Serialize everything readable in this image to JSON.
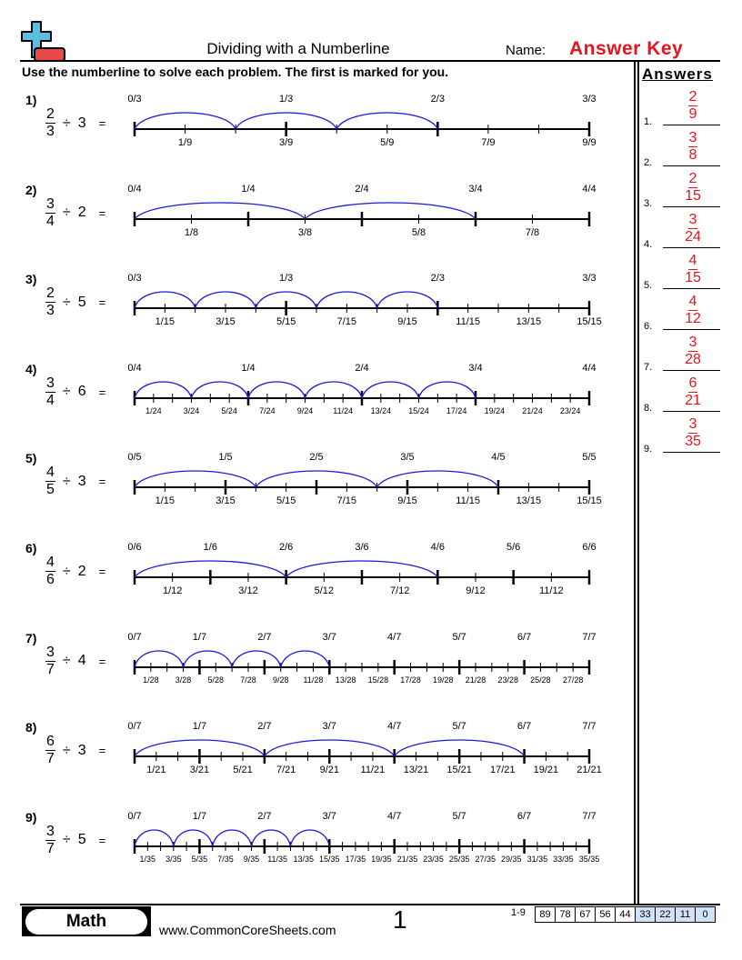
{
  "header": {
    "title": "Dividing with a Numberline",
    "name_label": "Name:",
    "name_value": "Answer Key",
    "instructions": "Use the numberline to solve each problem. The first is marked for you."
  },
  "colors": {
    "answer": "#e8141c",
    "arc": "#1a1adc",
    "logo_plus": "#5bbde0",
    "logo_minus": "#e84848",
    "score_highlight": "#cfe2f8"
  },
  "problems": [
    {
      "label": "1)",
      "num": "2",
      "den": "3",
      "divisor": "3",
      "parts": 9,
      "arcs": 3,
      "arc_end": "2/3",
      "top": [
        "0/3",
        "1/3",
        "2/3",
        "3/3"
      ],
      "bottom": [
        "1/9",
        "3/9",
        "5/9",
        "7/9",
        "9/9"
      ]
    },
    {
      "label": "2)",
      "num": "3",
      "den": "4",
      "divisor": "2",
      "parts": 8,
      "arcs": 2,
      "arc_end": "3/4",
      "top": [
        "0/4",
        "1/4",
        "2/4",
        "3/4",
        "4/4"
      ],
      "bottom": [
        "1/8",
        "3/8",
        "5/8",
        "7/8"
      ]
    },
    {
      "label": "3)",
      "num": "2",
      "den": "3",
      "divisor": "5",
      "parts": 15,
      "arcs": 5,
      "arc_end": "2/3",
      "top": [
        "0/3",
        "1/3",
        "2/3",
        "3/3"
      ],
      "bottom": [
        "1/15",
        "3/15",
        "5/15",
        "7/15",
        "9/15",
        "11/15",
        "13/15",
        "15/15"
      ]
    },
    {
      "label": "4)",
      "num": "3",
      "den": "4",
      "divisor": "6",
      "parts": 24,
      "arcs": 6,
      "arc_end": "3/4",
      "top": [
        "0/4",
        "1/4",
        "2/4",
        "3/4",
        "4/4"
      ],
      "bottom": [
        "1/24",
        "3/24",
        "5/24",
        "7/24",
        "9/24",
        "11/24",
        "13/24",
        "15/24",
        "17/24",
        "19/24",
        "21/24",
        "23/24"
      ]
    },
    {
      "label": "5)",
      "num": "4",
      "den": "5",
      "divisor": "3",
      "parts": 15,
      "arcs": 3,
      "arc_end": "4/5",
      "top": [
        "0/5",
        "1/5",
        "2/5",
        "3/5",
        "4/5",
        "5/5"
      ],
      "bottom": [
        "1/15",
        "3/15",
        "5/15",
        "7/15",
        "9/15",
        "11/15",
        "13/15",
        "15/15"
      ]
    },
    {
      "label": "6)",
      "num": "4",
      "den": "6",
      "divisor": "2",
      "parts": 12,
      "arcs": 2,
      "arc_end": "4/6",
      "top": [
        "0/6",
        "1/6",
        "2/6",
        "3/6",
        "4/6",
        "5/6",
        "6/6"
      ],
      "bottom": [
        "1/12",
        "3/12",
        "5/12",
        "7/12",
        "9/12",
        "11/12"
      ]
    },
    {
      "label": "7)",
      "num": "3",
      "den": "7",
      "divisor": "4",
      "parts": 28,
      "arcs": 4,
      "arc_end": "3/7",
      "top": [
        "0/7",
        "1/7",
        "2/7",
        "3/7",
        "4/7",
        "5/7",
        "6/7",
        "7/7"
      ],
      "bottom": [
        "1/28",
        "3/28",
        "5/28",
        "7/28",
        "9/28",
        "11/28",
        "13/28",
        "15/28",
        "17/28",
        "19/28",
        "21/28",
        "23/28",
        "25/28",
        "27/28"
      ]
    },
    {
      "label": "8)",
      "num": "6",
      "den": "7",
      "divisor": "3",
      "parts": 21,
      "arcs": 3,
      "arc_end": "6/7",
      "top": [
        "0/7",
        "1/7",
        "2/7",
        "3/7",
        "4/7",
        "5/7",
        "6/7",
        "7/7"
      ],
      "bottom": [
        "1/21",
        "3/21",
        "5/21",
        "7/21",
        "9/21",
        "11/21",
        "13/21",
        "15/21",
        "17/21",
        "19/21",
        "21/21"
      ]
    },
    {
      "label": "9)",
      "num": "3",
      "den": "7",
      "divisor": "5",
      "parts": 35,
      "arcs": 5,
      "arc_end": "3/7",
      "top": [
        "0/7",
        "1/7",
        "2/7",
        "3/7",
        "4/7",
        "5/7",
        "6/7",
        "7/7"
      ],
      "bottom": [
        "1/35",
        "3/35",
        "5/35",
        "7/35",
        "9/35",
        "11/35",
        "13/35",
        "15/35",
        "17/35",
        "19/35",
        "21/35",
        "23/35",
        "25/35",
        "27/35",
        "29/35",
        "31/35",
        "33/35",
        "35/35"
      ]
    }
  ],
  "answers": {
    "heading": "Answers",
    "items": [
      {
        "n": "1.",
        "num": "2",
        "den": "9"
      },
      {
        "n": "2.",
        "num": "3",
        "den": "8"
      },
      {
        "n": "3.",
        "num": "2",
        "den": "15"
      },
      {
        "n": "4.",
        "num": "3",
        "den": "24"
      },
      {
        "n": "5.",
        "num": "4",
        "den": "15"
      },
      {
        "n": "6.",
        "num": "4",
        "den": "12"
      },
      {
        "n": "7.",
        "num": "3",
        "den": "28"
      },
      {
        "n": "8.",
        "num": "6",
        "den": "21"
      },
      {
        "n": "9.",
        "num": "3",
        "den": "35"
      }
    ]
  },
  "footer": {
    "subject": "Math",
    "website": "www.CommonCoreSheets.com",
    "page": "1",
    "score_label": "1-9",
    "scores": [
      "89",
      "78",
      "67",
      "56",
      "44",
      "33",
      "22",
      "11",
      "0"
    ],
    "highlighted_from": 5
  }
}
